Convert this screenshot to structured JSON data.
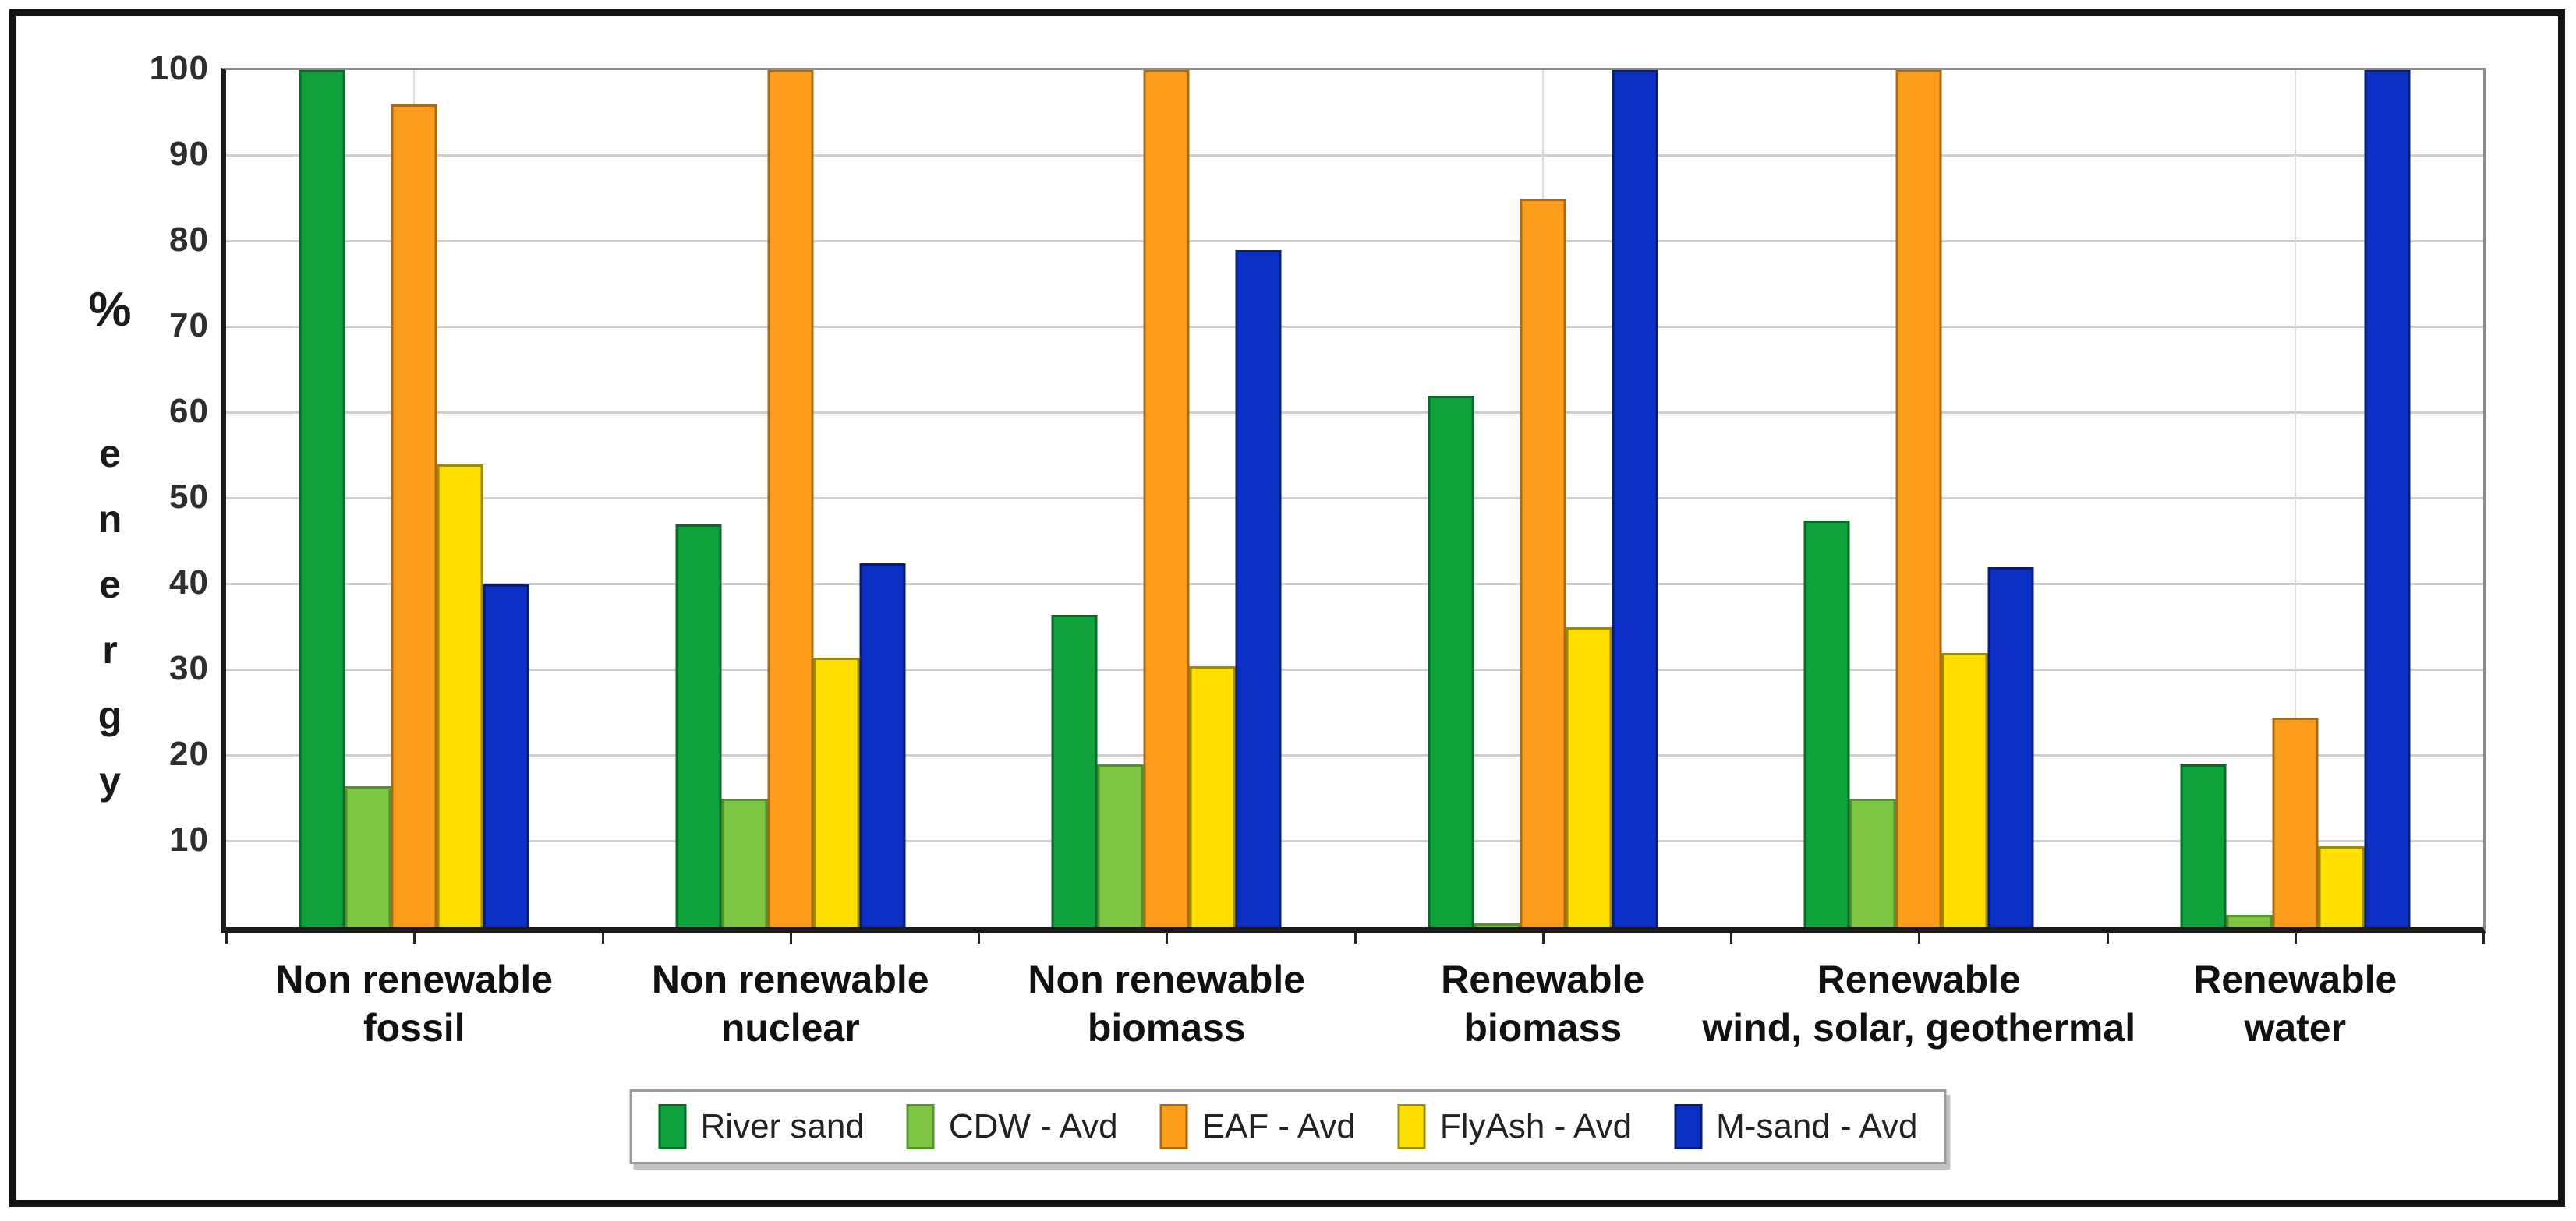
{
  "window": {
    "background": "#ffffff",
    "frame_color": "#141414"
  },
  "chart_data": {
    "type": "bar",
    "title": "",
    "xlabel": "",
    "ylabel": "% energy",
    "ylabel_symbol": "%",
    "ylabel_letters": [
      "e",
      "n",
      "e",
      "r",
      "g",
      "y"
    ],
    "ylim": [
      0,
      100
    ],
    "ytick_interval": 10,
    "yticks": [
      10,
      20,
      30,
      40,
      50,
      60,
      70,
      80,
      90,
      100
    ],
    "grid": {
      "horizontal": true,
      "vertical_category_lines": true,
      "color": "#cfcfcf"
    },
    "axis_color": "#1a1a1a",
    "plot_border_color": "#8c8c8c",
    "tick_label_color": "#2e2e2e",
    "legend": {
      "position": "bottom-center",
      "background": "#ffffff",
      "border_color": "#9a9a9a"
    },
    "categories": [
      {
        "label": "Non renewable fossil",
        "lines": [
          "Non renewable",
          "fossil"
        ]
      },
      {
        "label": "Non renewable nuclear",
        "lines": [
          "Non renewable",
          "nuclear"
        ]
      },
      {
        "label": "Non renewable biomass",
        "lines": [
          "Non renewable",
          "biomass"
        ]
      },
      {
        "label": "Renewable biomass",
        "lines": [
          "Renewable",
          "biomass"
        ]
      },
      {
        "label": "Renewable wind, solar, geothermal",
        "lines": [
          "Renewable",
          "wind, solar, geothermal"
        ]
      },
      {
        "label": "Renewable water",
        "lines": [
          "Renewable",
          "water"
        ]
      }
    ],
    "series": [
      {
        "name": "River sand",
        "fill": "#0FA23C",
        "border": "#0A6B28",
        "values": [
          100,
          47,
          36.5,
          62,
          47.5,
          19
        ]
      },
      {
        "name": "CDW - Avd",
        "fill": "#7DC543",
        "border": "#55942B",
        "values": [
          16.5,
          15,
          19,
          0.5,
          15,
          1.5
        ]
      },
      {
        "name": "EAF - Avd",
        "fill": "#FB9C1C",
        "border": "#AA6A12",
        "values": [
          96,
          100,
          100,
          85,
          100,
          24.5
        ]
      },
      {
        "name": "FlyAsh - Avd",
        "fill": "#FFDE00",
        "border": "#9C8A00",
        "values": [
          54,
          31.5,
          30.5,
          35,
          32,
          9.5
        ]
      },
      {
        "name": "M-sand - Avd",
        "fill": "#0C2FC4",
        "border": "#071C77",
        "values": [
          40,
          42.5,
          79,
          100,
          42,
          100
        ]
      }
    ]
  }
}
